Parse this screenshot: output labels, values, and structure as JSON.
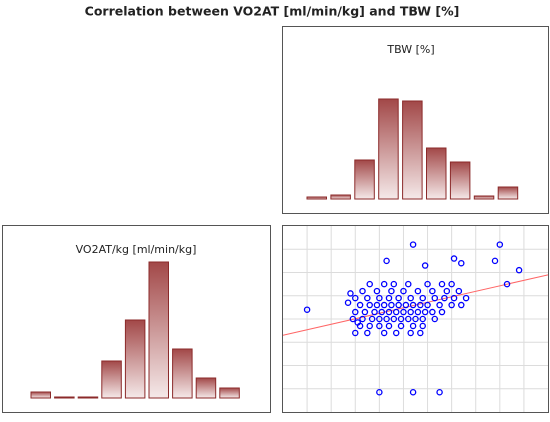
{
  "title": "Correlation between VO2AT [ml/min/kg] and TBW [%]",
  "chart_data": [
    {
      "type": "bar",
      "title": "TBW [%]",
      "categories": [
        null,
        null,
        null,
        null,
        null,
        null,
        null,
        null,
        null
      ],
      "values": [
        2,
        4,
        39,
        100,
        98,
        51,
        37,
        3,
        12
      ],
      "color": "#8b2a2a"
    },
    {
      "type": "bar",
      "title": "VO2AT/kg [ml/min/kg]",
      "categories": [
        null,
        null,
        null,
        null,
        null,
        null,
        null,
        null,
        null
      ],
      "values": [
        6,
        1,
        1,
        37,
        78,
        136,
        49,
        20,
        10
      ],
      "color": "#8b2a2a"
    },
    {
      "type": "scatter",
      "color": "#0000ff",
      "grid": true,
      "xlim": [
        0,
        11
      ],
      "ylim": [
        0,
        8
      ],
      "xticks": [
        1,
        2,
        3,
        4,
        5,
        6,
        7,
        8,
        9,
        10
      ],
      "yticks": [
        1,
        2,
        3,
        4,
        5,
        6,
        7
      ],
      "x": [
        3.6,
        4.2,
        4.6,
        5.2,
        6.0,
        6.6,
        7.0,
        3.3,
        3.9,
        4.5,
        5.0,
        5.6,
        6.2,
        6.8,
        7.3,
        3.0,
        3.5,
        4.0,
        4.4,
        4.8,
        5.3,
        5.8,
        6.3,
        6.7,
        7.1,
        7.6,
        3.2,
        3.6,
        3.9,
        4.2,
        4.5,
        4.8,
        5.1,
        5.4,
        5.7,
        6.0,
        6.5,
        7.0,
        7.4,
        3.0,
        3.4,
        3.8,
        4.1,
        4.4,
        4.7,
        5.0,
        5.3,
        5.6,
        5.9,
        6.2,
        6.6,
        2.9,
        3.3,
        3.7,
        4.0,
        4.3,
        4.6,
        4.9,
        5.2,
        5.5,
        5.8,
        6.3,
        3.2,
        3.6,
        4.0,
        4.4,
        4.9,
        5.4,
        5.8,
        3.0,
        3.5,
        4.2,
        4.7,
        5.3,
        5.7,
        1.0,
        5.4,
        9.0,
        9.8,
        9.3,
        4.0,
        5.4,
        6.5,
        4.3,
        5.9,
        7.1,
        7.4,
        8.8,
        2.8,
        2.7,
        3.1
      ],
      "values": [
        5.5,
        5.5,
        5.5,
        5.5,
        5.5,
        5.5,
        5.5,
        5.2,
        5.2,
        5.2,
        5.2,
        5.2,
        5.2,
        5.2,
        5.2,
        4.9,
        4.9,
        4.9,
        4.9,
        4.9,
        4.9,
        4.9,
        4.9,
        4.9,
        4.9,
        4.9,
        4.6,
        4.6,
        4.6,
        4.6,
        4.6,
        4.6,
        4.6,
        4.6,
        4.6,
        4.6,
        4.6,
        4.6,
        4.6,
        4.3,
        4.3,
        4.3,
        4.3,
        4.3,
        4.3,
        4.3,
        4.3,
        4.3,
        4.3,
        4.3,
        4.3,
        4.0,
        4.0,
        4.0,
        4.0,
        4.0,
        4.0,
        4.0,
        4.0,
        4.0,
        4.0,
        4.0,
        3.7,
        3.7,
        3.7,
        3.7,
        3.7,
        3.7,
        3.7,
        3.4,
        3.4,
        3.4,
        3.4,
        3.4,
        3.4,
        4.4,
        7.2,
        7.2,
        6.1,
        5.5,
        0.85,
        0.85,
        0.85,
        6.5,
        6.3,
        6.6,
        6.4,
        6.5,
        5.1,
        4.7,
        3.85
      ],
      "trend_line": {
        "x": [
          0,
          11
        ],
        "values": [
          3.3,
          5.9
        ],
        "color": "#ff6666"
      }
    }
  ]
}
